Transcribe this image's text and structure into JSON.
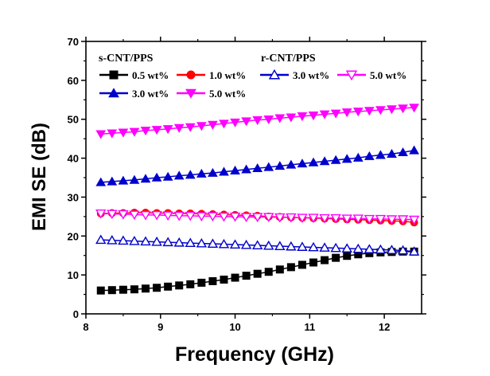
{
  "chart_data": {
    "type": "line",
    "xlabel": "Frequency (GHz)",
    "ylabel": "EMI SE (dB)",
    "xlim": [
      8,
      12.5
    ],
    "ylim": [
      0,
      70
    ],
    "xticks": [
      8,
      9,
      10,
      11,
      12
    ],
    "yticks": [
      0,
      10,
      20,
      30,
      40,
      50,
      60,
      70
    ],
    "grid": false,
    "legend_placement": "top",
    "legend_groups": [
      {
        "title": "s-CNT/PPS",
        "series_indices": [
          0,
          1,
          2,
          3
        ]
      },
      {
        "title": "r-CNT/PPS",
        "series_indices": [
          4,
          5
        ]
      }
    ],
    "x": [
      8.2,
      8.35,
      8.5,
      8.65,
      8.8,
      8.95,
      9.1,
      9.25,
      9.4,
      9.55,
      9.7,
      9.85,
      10.0,
      10.15,
      10.3,
      10.45,
      10.6,
      10.75,
      10.9,
      11.05,
      11.2,
      11.35,
      11.5,
      11.65,
      11.8,
      11.95,
      12.1,
      12.25,
      12.4
    ],
    "series": [
      {
        "name": "0.5 wt%",
        "group": "s-CNT/PPS",
        "color": "#000000",
        "marker": "square",
        "filled": true,
        "values": [
          6.0,
          6.1,
          6.2,
          6.3,
          6.5,
          6.7,
          7.0,
          7.3,
          7.6,
          8.0,
          8.4,
          8.8,
          9.3,
          9.8,
          10.3,
          10.8,
          11.4,
          12.0,
          12.6,
          13.2,
          13.8,
          14.4,
          14.9,
          15.3,
          15.6,
          15.8,
          15.9,
          16.0,
          16.0
        ]
      },
      {
        "name": "1.0 wt%",
        "group": "s-CNT/PPS",
        "color": "#ff0000",
        "marker": "circle",
        "filled": true,
        "values": [
          25.8,
          25.9,
          25.9,
          26.0,
          26.0,
          25.9,
          25.9,
          25.8,
          25.8,
          25.7,
          25.6,
          25.5,
          25.4,
          25.3,
          25.2,
          25.0,
          24.9,
          24.8,
          24.7,
          24.6,
          24.5,
          24.4,
          24.3,
          24.2,
          24.1,
          24.0,
          23.9,
          23.8,
          23.5
        ]
      },
      {
        "name": "3.0 wt%",
        "group": "s-CNT/PPS",
        "color": "#0000cc",
        "marker": "triangle-up",
        "filled": true,
        "values": [
          33.8,
          34.0,
          34.2,
          34.4,
          34.7,
          35.0,
          35.2,
          35.5,
          35.7,
          36.0,
          36.2,
          36.5,
          36.8,
          37.1,
          37.4,
          37.7,
          38.0,
          38.3,
          38.6,
          38.9,
          39.2,
          39.5,
          39.8,
          40.1,
          40.5,
          40.8,
          41.1,
          41.5,
          42.0
        ]
      },
      {
        "name": "5.0 wt%",
        "group": "s-CNT/PPS",
        "color": "#ff00ff",
        "marker": "triangle-down",
        "filled": true,
        "values": [
          46.2,
          46.4,
          46.6,
          46.8,
          47.1,
          47.3,
          47.5,
          47.8,
          48.0,
          48.3,
          48.6,
          48.9,
          49.2,
          49.5,
          49.8,
          50.0,
          50.3,
          50.5,
          50.8,
          51.0,
          51.3,
          51.5,
          51.8,
          52.0,
          52.2,
          52.4,
          52.6,
          52.8,
          53.0
        ]
      },
      {
        "name": "3.0 wt%",
        "group": "r-CNT/PPS",
        "color": "#0000cc",
        "marker": "triangle-up",
        "filled": false,
        "values": [
          19.0,
          18.9,
          18.8,
          18.7,
          18.6,
          18.5,
          18.4,
          18.3,
          18.2,
          18.1,
          18.0,
          17.9,
          17.8,
          17.7,
          17.6,
          17.5,
          17.4,
          17.3,
          17.2,
          17.1,
          17.0,
          16.9,
          16.8,
          16.7,
          16.6,
          16.5,
          16.4,
          16.3,
          16.0
        ]
      },
      {
        "name": "5.0 wt%",
        "group": "r-CNT/PPS",
        "color": "#ff00ff",
        "marker": "triangle-down",
        "filled": false,
        "values": [
          25.8,
          25.7,
          25.6,
          25.5,
          25.4,
          25.4,
          25.3,
          25.2,
          25.2,
          25.1,
          25.1,
          25.0,
          25.0,
          24.9,
          24.9,
          24.9,
          24.8,
          24.8,
          24.7,
          24.7,
          24.6,
          24.6,
          24.5,
          24.5,
          24.4,
          24.4,
          24.3,
          24.3,
          24.2
        ]
      }
    ]
  }
}
